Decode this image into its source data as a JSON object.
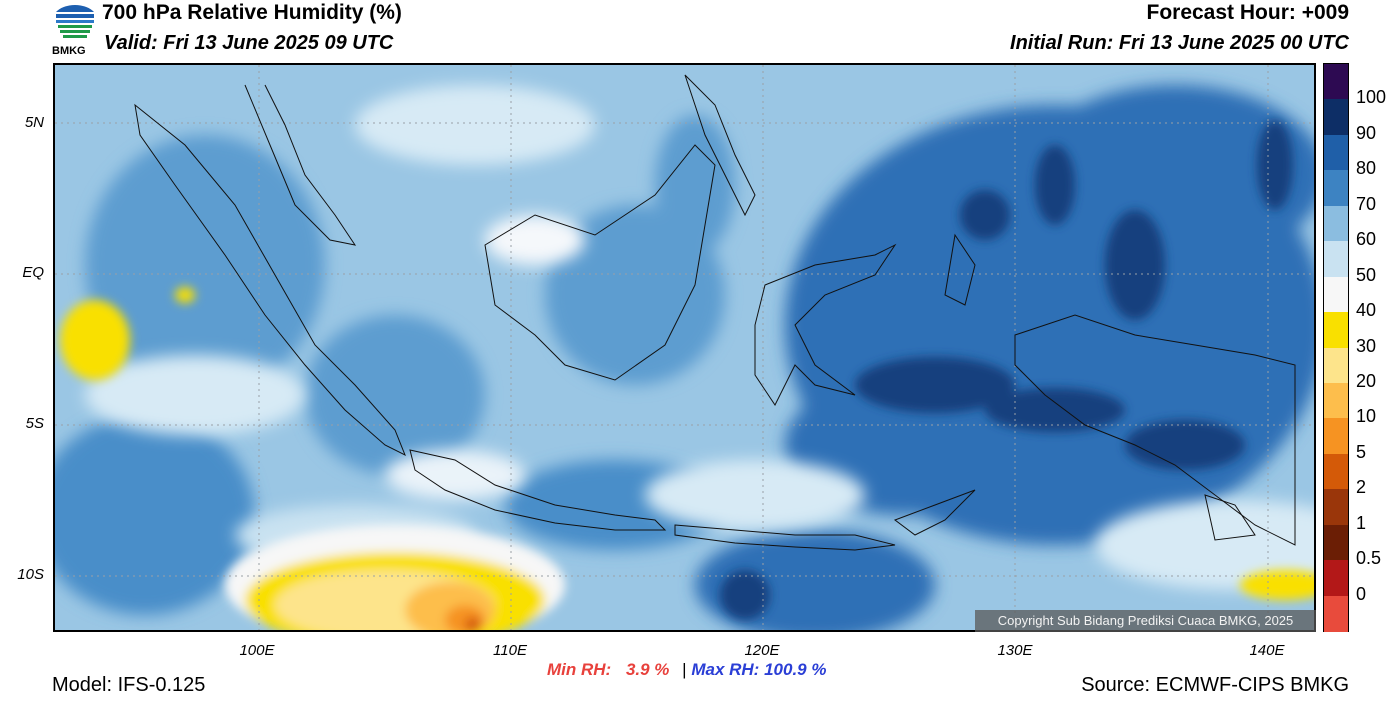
{
  "header": {
    "title": "700 hPa Relative Humidity (%)",
    "valid": "Valid: Fri 13 June 2025 09 UTC",
    "forecast_hour": "Forecast Hour: +009",
    "initial_run": "Initial Run: Fri 13 June 2025 00 UTC",
    "logo_text": "BMKG"
  },
  "map": {
    "lat_labels": [
      "5N",
      "EQ",
      "5S",
      "10S"
    ],
    "lon_labels": [
      "100E",
      "110E",
      "120E",
      "130E",
      "140E"
    ],
    "copyright": "Copyright Sub Bidang Prediksi Cuaca BMKG, 2025"
  },
  "colorbar": {
    "labels": [
      "100",
      "90",
      "80",
      "70",
      "60",
      "50",
      "40",
      "30",
      "20",
      "10",
      "5",
      "2",
      "1",
      "0.5",
      "0"
    ],
    "colors": [
      "#2d0a52",
      "#0d2e66",
      "#1f5fa8",
      "#3d83c2",
      "#8bbde0",
      "#c9e2f1",
      "#f7f7f7",
      "#f9e000",
      "#fde48b",
      "#fdbe4c",
      "#f69322",
      "#d45a08",
      "#9a360a",
      "#6b1e05",
      "#b31818",
      "#e84b3c"
    ]
  },
  "stats": {
    "min_label": "Min RH:",
    "min_value": "3.9 %",
    "separator": "|",
    "max_label": "Max RH:",
    "max_value": "100.9 %"
  },
  "footer": {
    "model": "Model: IFS-0.125",
    "source": "Source: ECMWF-CIPS BMKG"
  }
}
